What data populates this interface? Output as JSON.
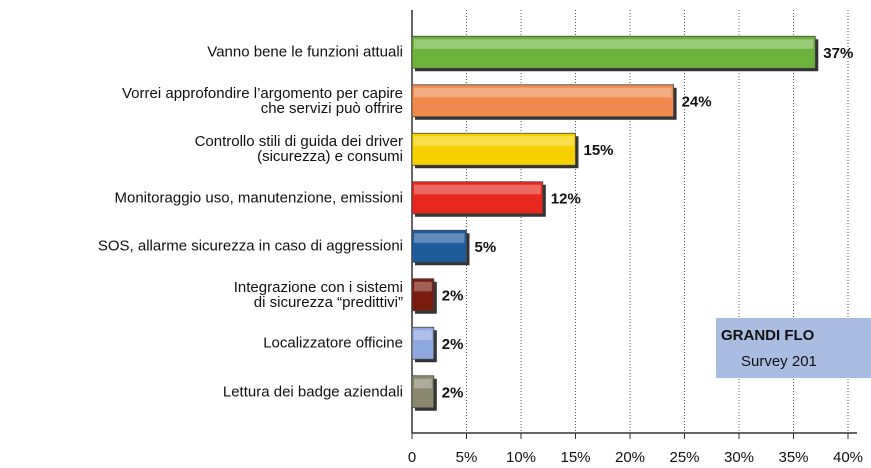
{
  "chart_data": {
    "type": "bar",
    "orientation": "horizontal",
    "categories": [
      "Vanno bene le funzioni attuali",
      "Vorrei approfondire l’argomento per capire\nche servizi può offrire",
      "Controllo stili di guida dei driver\n(sicurezza) e consumi",
      "Monitoraggio uso, manutenzione, emissioni",
      "SOS, allarme sicurezza in caso di aggressioni",
      "Integrazione con i sistemi\ndi sicurezza “predittivi”",
      "Localizzatore officine",
      "Lettura dei badge aziendali"
    ],
    "values": [
      37,
      24,
      15,
      12,
      5,
      2,
      2,
      2
    ],
    "value_labels": [
      "37%",
      "24%",
      "15%",
      "12%",
      "5%",
      "2%",
      "2%",
      "2%"
    ],
    "colors": [
      "#6cb33e",
      "#f08a4c",
      "#f6d000",
      "#e8281d",
      "#1d5b9c",
      "#7a1b0f",
      "#8ea7df",
      "#8a886c"
    ],
    "xlim": [
      0,
      40
    ],
    "xticks": [
      0,
      {
        "value": 5,
        "label": "5%"
      },
      {
        "value": 10,
        "label": "10%"
      },
      {
        "value": 15,
        "label": "15%"
      },
      {
        "value": 20,
        "label": "20%"
      },
      {
        "value": 25,
        "label": "25%"
      },
      {
        "value": 30,
        "label": "30%"
      },
      {
        "value": 35,
        "label": "35%"
      },
      {
        "value": 40,
        "label": "40%"
      }
    ],
    "grid": true,
    "annotation": {
      "title": "GRANDI FLO",
      "subtitle": "Survey 201"
    }
  }
}
